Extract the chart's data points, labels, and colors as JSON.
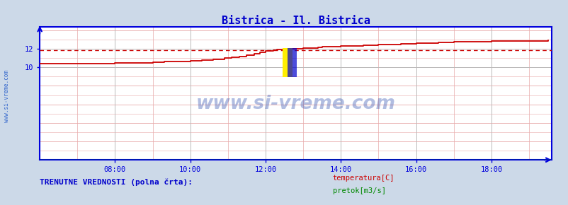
{
  "title": "Bistrica - Il. Bistrica",
  "title_color": "#0000cc",
  "bg_color": "#ccd9e8",
  "plot_bg_color": "#ffffff",
  "axis_color": "#0000dd",
  "watermark_text": "www.si-vreme.com",
  "watermark_color": "#2244aa",
  "watermark_alpha": 0.35,
  "xticklabels": [
    "08:00",
    "10:00",
    "12:00",
    "14:00",
    "16:00",
    "18:00"
  ],
  "xtick_values": [
    8,
    10,
    12,
    14,
    16,
    18
  ],
  "yticks": [
    10,
    12
  ],
  "ylim": [
    0,
    14.4
  ],
  "xlim": [
    6.0,
    19.6
  ],
  "temp_color": "#cc0000",
  "temp_avg_color": "#cc0000",
  "temp_avg": 11.86,
  "flow_color": "#008800",
  "flow_value": 0.05,
  "legend_label_temp": "temperatura[C]",
  "legend_label_flow": "pretok[m3/s]",
  "legend_temp_color": "#cc0000",
  "legend_flow_color": "#008800",
  "bottom_text": "TRENUTNE VREDNOSTI (polna črta):",
  "bottom_text_color": "#0000cc",
  "sidebar_text": "www.si-vreme.com",
  "sidebar_color": "#3366cc",
  "grid_main_color": "#bbbbbb",
  "grid_sub_color": "#e8aaaa",
  "temp_steps": [
    [
      6.0,
      10.4
    ],
    [
      6.5,
      10.4
    ],
    [
      7.0,
      10.4
    ],
    [
      7.5,
      10.4
    ],
    [
      8.0,
      10.45
    ],
    [
      8.5,
      10.5
    ],
    [
      9.0,
      10.55
    ],
    [
      9.3,
      10.6
    ],
    [
      9.7,
      10.65
    ],
    [
      10.0,
      10.7
    ],
    [
      10.3,
      10.8
    ],
    [
      10.6,
      10.9
    ],
    [
      10.9,
      11.0
    ],
    [
      11.1,
      11.1
    ],
    [
      11.3,
      11.2
    ],
    [
      11.5,
      11.35
    ],
    [
      11.7,
      11.5
    ],
    [
      11.85,
      11.65
    ],
    [
      12.0,
      11.75
    ],
    [
      12.1,
      11.8
    ],
    [
      12.2,
      11.85
    ],
    [
      12.3,
      11.9
    ],
    [
      12.5,
      11.95
    ],
    [
      12.7,
      12.0
    ],
    [
      13.0,
      12.05
    ],
    [
      13.2,
      12.1
    ],
    [
      13.4,
      12.15
    ],
    [
      13.5,
      12.2
    ],
    [
      13.7,
      12.25
    ],
    [
      14.0,
      12.3
    ],
    [
      14.3,
      12.35
    ],
    [
      14.6,
      12.4
    ],
    [
      15.0,
      12.45
    ],
    [
      15.3,
      12.5
    ],
    [
      15.6,
      12.55
    ],
    [
      16.0,
      12.6
    ],
    [
      16.3,
      12.65
    ],
    [
      16.6,
      12.7
    ],
    [
      17.0,
      12.75
    ],
    [
      17.3,
      12.78
    ],
    [
      17.6,
      12.8
    ],
    [
      18.0,
      12.82
    ],
    [
      18.3,
      12.84
    ],
    [
      18.6,
      12.86
    ],
    [
      19.0,
      12.88
    ],
    [
      19.5,
      12.9
    ]
  ]
}
